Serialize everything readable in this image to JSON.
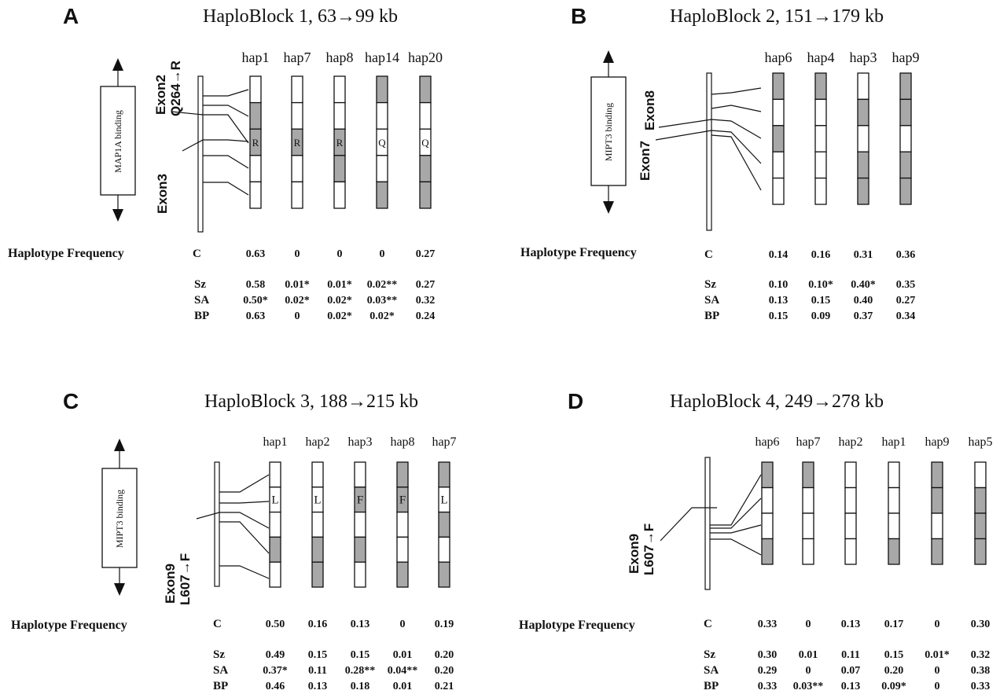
{
  "panels": [
    {
      "letter": "A",
      "title": "HaploBlock 1, 63→99 kb",
      "domain": "MAP1A binding",
      "exons": [
        "Exon2\nQ264→R",
        "Exon3"
      ],
      "exon_a_line1": "Exon2",
      "exon_a_line2": "Q264→R",
      "exon_b": "Exon3",
      "frequency_label": "Haplotype Frequency",
      "haplotypes": [
        {
          "name": "hap1",
          "cells": [
            0,
            1,
            1,
            0,
            0
          ],
          "letter": "R",
          "C": "0.63",
          "Sz": "0.58",
          "SA": "0.50*",
          "BP": "0.63"
        },
        {
          "name": "hap7",
          "cells": [
            0,
            0,
            1,
            0,
            0
          ],
          "letter": "R",
          "C": "0",
          "Sz": "0.01*",
          "SA": "0.02*",
          "BP": "0"
        },
        {
          "name": "hap8",
          "cells": [
            0,
            0,
            1,
            1,
            0
          ],
          "letter": "R",
          "C": "0",
          "Sz": "0.01*",
          "SA": "0.02*",
          "BP": "0.02*"
        },
        {
          "name": "hap14",
          "cells": [
            1,
            0,
            0,
            0,
            1
          ],
          "letter": "Q",
          "C": "0",
          "Sz": "0.02**",
          "SA": "0.03**",
          "BP": "0.02*"
        },
        {
          "name": "hap20",
          "cells": [
            1,
            0,
            0,
            1,
            1
          ],
          "letter": "Q",
          "C": "0.27",
          "Sz": "0.27",
          "SA": "0.32",
          "BP": "0.24"
        }
      ],
      "rows": [
        "C",
        "Sz",
        "SA",
        "BP"
      ]
    },
    {
      "letter": "B",
      "title": "HaploBlock 2, 151→179 kb",
      "domain": "MIPT3 binding",
      "exon_a_line1": "Exon8",
      "exon_b": "Exon7",
      "frequency_label": "Haplotype Frequency",
      "haplotypes": [
        {
          "name": "hap6",
          "cells": [
            1,
            0,
            1,
            0,
            0
          ],
          "C": "0.14",
          "Sz": "0.10",
          "SA": "0.13",
          "BP": "0.15"
        },
        {
          "name": "hap4",
          "cells": [
            1,
            0,
            0,
            0,
            0
          ],
          "C": "0.16",
          "Sz": "0.10*",
          "SA": "0.15",
          "BP": "0.09"
        },
        {
          "name": "hap3",
          "cells": [
            0,
            1,
            0,
            1,
            1
          ],
          "C": "0.31",
          "Sz": "0.40*",
          "SA": "0.40",
          "BP": "0.37"
        },
        {
          "name": "hap9",
          "cells": [
            1,
            1,
            0,
            1,
            1
          ],
          "C": "0.36",
          "Sz": "0.35",
          "SA": "0.27",
          "BP": "0.34"
        }
      ],
      "rows": [
        "C",
        "Sz",
        "SA",
        "BP"
      ]
    },
    {
      "letter": "C",
      "title": "HaploBlock 3, 188→215 kb",
      "domain": "MIPT3 binding",
      "exon_a_line1": "Exon9",
      "exon_a_line2": "L607→F",
      "frequency_label": "Haplotype Frequency",
      "haplotypes": [
        {
          "name": "hap1",
          "cells": [
            0,
            0,
            0,
            1,
            0
          ],
          "letter": "L",
          "C": "0.50",
          "Sz": "0.49",
          "SA": "0.37*",
          "BP": "0.46"
        },
        {
          "name": "hap2",
          "cells": [
            0,
            0,
            0,
            1,
            1
          ],
          "letter": "L",
          "C": "0.16",
          "Sz": "0.15",
          "SA": "0.11",
          "BP": "0.13"
        },
        {
          "name": "hap3",
          "cells": [
            0,
            1,
            0,
            1,
            0
          ],
          "letter": "F",
          "C": "0.13",
          "Sz": "0.15",
          "SA": "0.28**",
          "BP": "0.18"
        },
        {
          "name": "hap8",
          "cells": [
            1,
            1,
            0,
            0,
            1
          ],
          "letter": "F",
          "C": "0",
          "Sz": "0.01",
          "SA": "0.04**",
          "BP": "0.01"
        },
        {
          "name": "hap7",
          "cells": [
            1,
            0,
            1,
            0,
            1
          ],
          "letter": "L",
          "C": "0.19",
          "Sz": "0.20",
          "SA": "0.20",
          "BP": "0.21"
        }
      ],
      "rows": [
        "C",
        "Sz",
        "SA",
        "BP"
      ]
    },
    {
      "letter": "D",
      "title": "HaploBlock 4, 249→278 kb",
      "exon_a_line1": "Exon9",
      "exon_a_line2": "L607→F",
      "frequency_label": "Haplotype Frequency",
      "haplotypes": [
        {
          "name": "hap6",
          "cells": [
            1,
            0,
            0,
            1
          ],
          "C": "0.33",
          "Sz": "0.30",
          "SA": "0.29",
          "BP": "0.33"
        },
        {
          "name": "hap7",
          "cells": [
            1,
            0,
            0,
            0
          ],
          "C": "0",
          "Sz": "0.01",
          "SA": "0",
          "BP": "0.03**"
        },
        {
          "name": "hap2",
          "cells": [
            0,
            0,
            0,
            0
          ],
          "C": "0.13",
          "Sz": "0.11",
          "SA": "0.07",
          "BP": "0.13"
        },
        {
          "name": "hap1",
          "cells": [
            0,
            0,
            0,
            1
          ],
          "C": "0.17",
          "Sz": "0.15",
          "SA": "0.20",
          "BP": "0.09*"
        },
        {
          "name": "hap9",
          "cells": [
            1,
            1,
            0,
            1
          ],
          "C": "0",
          "Sz": "0.01*",
          "SA": "0",
          "BP": "0"
        },
        {
          "name": "hap5",
          "cells": [
            0,
            1,
            1,
            1
          ],
          "C": "0.30",
          "Sz": "0.32",
          "SA": "0.38",
          "BP": "0.33"
        }
      ],
      "rows": [
        "C",
        "Sz",
        "SA",
        "BP"
      ]
    }
  ],
  "colors": {
    "grey_cell": "#a8a8a8",
    "white_cell": "#ffffff",
    "ink": "#111111"
  }
}
